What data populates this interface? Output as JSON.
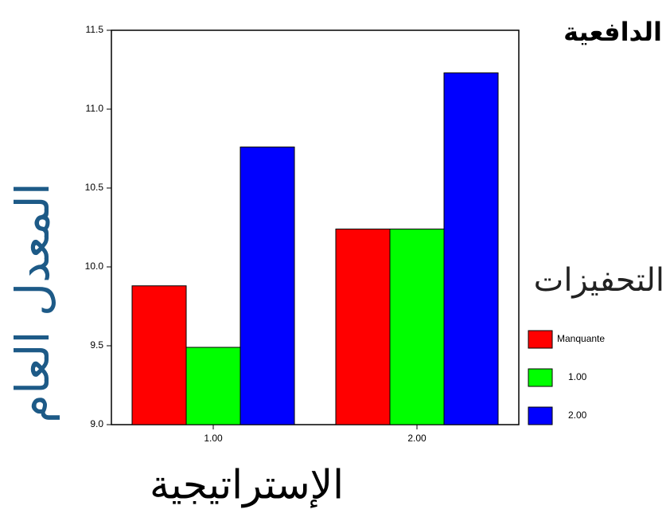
{
  "chart_data": {
    "type": "bar",
    "title": "الدافعية",
    "x_label": "الإستراتيجية",
    "y_label": "المعدل العام",
    "legend_title": "التحفيزات",
    "categories": [
      "1.00",
      "2.00"
    ],
    "series": [
      {
        "name": "Manquante",
        "color": "#ff0000",
        "values": [
          9.88,
          10.24
        ]
      },
      {
        "name": "1.00",
        "color": "#00ff00",
        "values": [
          9.49,
          10.24
        ]
      },
      {
        "name": "2.00",
        "color": "#0000ff",
        "values": [
          10.76,
          11.23
        ]
      }
    ],
    "ylim": [
      9.0,
      11.5
    ],
    "yticks": [
      {
        "value": 9.0,
        "label": "9.0"
      },
      {
        "value": 9.5,
        "label": "9.5"
      },
      {
        "value": 10.0,
        "label": "10.0"
      },
      {
        "value": 10.5,
        "label": "10.5"
      },
      {
        "value": 11.0,
        "label": "11.0"
      },
      {
        "value": 11.5,
        "label": "11.5"
      }
    ],
    "legend": "right"
  }
}
